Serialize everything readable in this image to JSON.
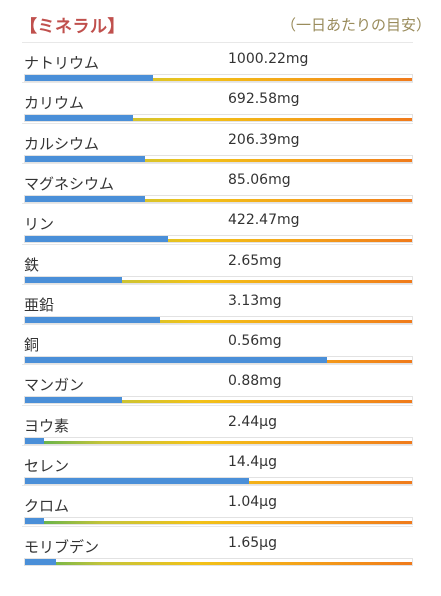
{
  "header": {
    "title": "【ミネラル】",
    "subtitle": "（一日あたりの目安）"
  },
  "colors": {
    "title": "#c0504d",
    "bar_fill": "#4a8fd8",
    "gradient_start": "#4caf50",
    "gradient_end": "#f07a1b"
  },
  "minerals": [
    {
      "name": "ナトリウム",
      "value": "1000.22mg",
      "level": 0.33
    },
    {
      "name": "カリウム",
      "value": "692.58mg",
      "level": 0.28
    },
    {
      "name": "カルシウム",
      "value": "206.39mg",
      "level": 0.31
    },
    {
      "name": "マグネシウム",
      "value": "85.06mg",
      "level": 0.31
    },
    {
      "name": "リン",
      "value": "422.47mg",
      "level": 0.37
    },
    {
      "name": "鉄",
      "value": "2.65mg",
      "level": 0.25
    },
    {
      "name": "亜鉛",
      "value": "3.13mg",
      "level": 0.35
    },
    {
      "name": "銅",
      "value": "0.56mg",
      "level": 0.78
    },
    {
      "name": "マンガン",
      "value": "0.88mg",
      "level": 0.25
    },
    {
      "name": "ヨウ素",
      "value": "2.44μg",
      "level": 0.05
    },
    {
      "name": "セレン",
      "value": "14.4μg",
      "level": 0.58
    },
    {
      "name": "クロム",
      "value": "1.04μg",
      "level": 0.05
    },
    {
      "name": "モリブデン",
      "value": "1.65μg",
      "level": 0.08
    }
  ]
}
